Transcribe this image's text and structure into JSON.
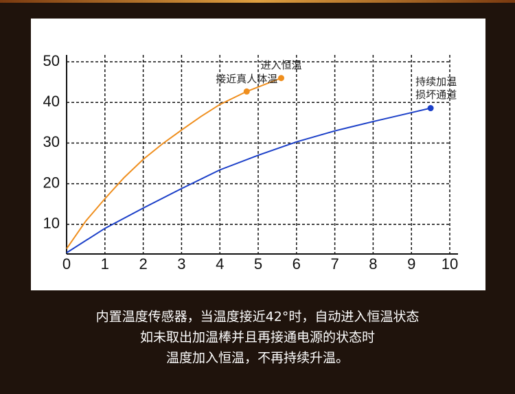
{
  "chart_data": {
    "type": "line",
    "xlim": [
      0,
      10
    ],
    "ylim": [
      2.7,
      51.7
    ],
    "xticks": [
      0,
      1,
      2,
      3,
      4,
      5,
      6,
      7,
      8,
      9,
      10
    ],
    "yticks": [
      10,
      20,
      30,
      40,
      50
    ],
    "grid": true,
    "series": [
      {
        "color": "#ef8e1d",
        "x": [
          0,
          0.5,
          1,
          1.5,
          2,
          2.5,
          3,
          3.5,
          4,
          4.7,
          5.6
        ],
        "values": [
          4,
          10.8,
          16.3,
          21.5,
          26,
          29.8,
          33.2,
          36.5,
          39.5,
          42.7,
          46
        ]
      },
      {
        "color": "#1b3fc8",
        "x": [
          0,
          1,
          2,
          3,
          4,
          5,
          6,
          7,
          8,
          9,
          9.5
        ],
        "values": [
          3,
          9,
          14,
          18.8,
          23.4,
          27,
          30.3,
          33,
          35.3,
          37.5,
          38.6
        ]
      }
    ],
    "annotations": [
      {
        "text": [
          "接近真人体温"
        ],
        "x": 4.7,
        "y": 42.7,
        "color": "#ef8e1d"
      },
      {
        "text": [
          "进入恒温"
        ],
        "x": 5.6,
        "y": 46,
        "color": "#ef8e1d"
      },
      {
        "text": [
          "持续加温",
          "损坏通道"
        ],
        "x": 9.5,
        "y": 38.6,
        "color": "#1b3fc8"
      }
    ]
  },
  "caption": [
    "内置温度传感器，当温度接近42°时，自动进入恒温状态",
    "如未取出加温棒并且再接通电源的状态时",
    "温度加入恒温，不再持续升温。"
  ]
}
